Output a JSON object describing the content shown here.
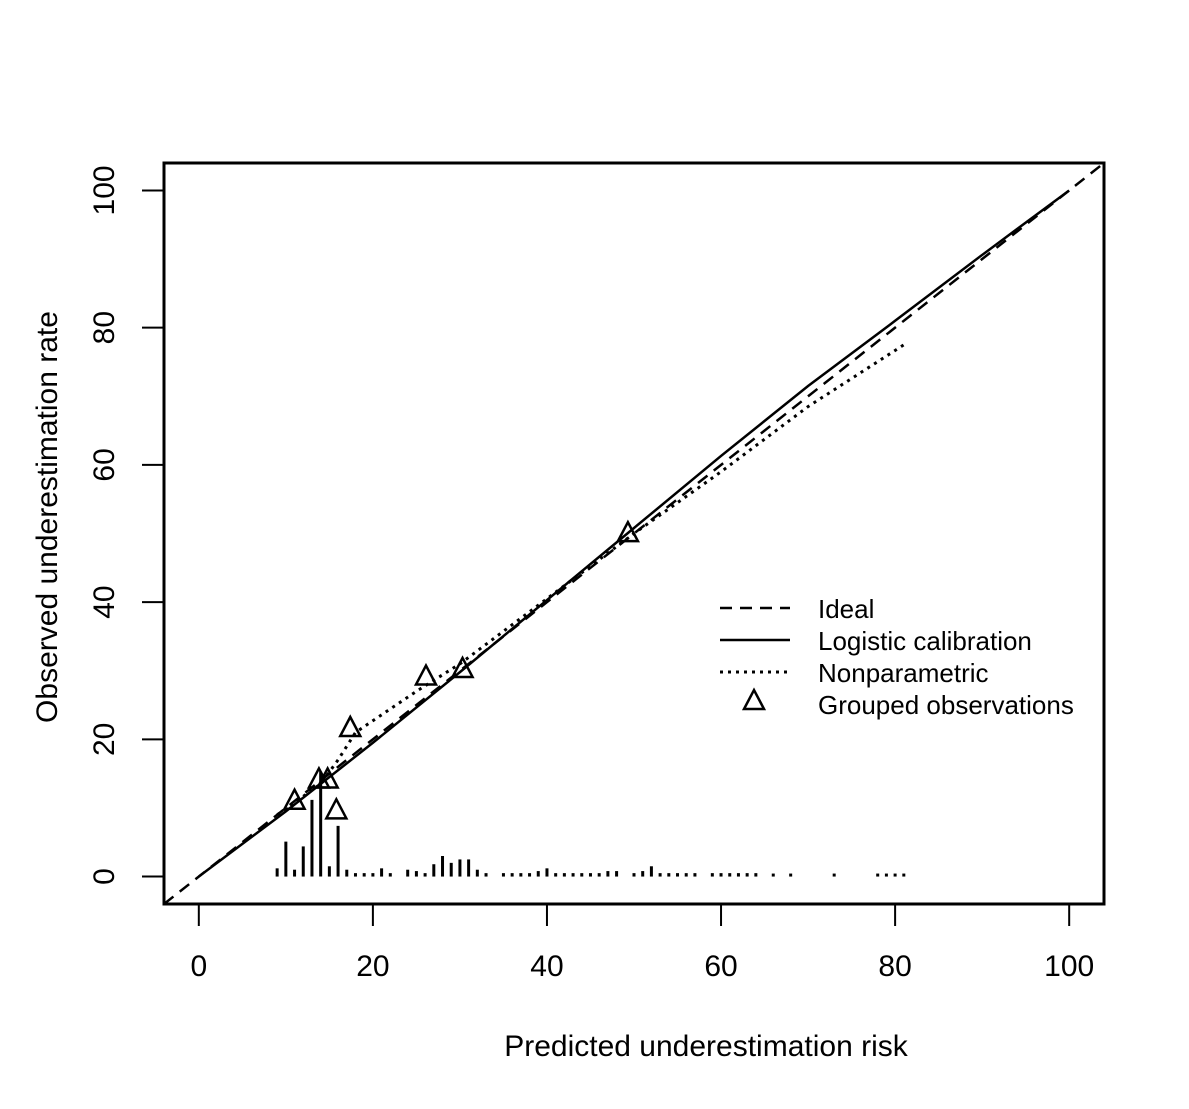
{
  "chart_data": {
    "type": "line",
    "title": "",
    "xlabel": "Predicted underestimation risk",
    "ylabel": "Observed underestimation rate",
    "xlim": [
      -4,
      104
    ],
    "ylim": [
      -4,
      104
    ],
    "xticks": [
      0,
      20,
      40,
      60,
      80,
      100
    ],
    "yticks": [
      0,
      20,
      40,
      60,
      80,
      100
    ],
    "grid": false,
    "legend_position": "center-right",
    "series": [
      {
        "name": "Ideal",
        "style": "dashed",
        "x": [
          -4,
          104
        ],
        "y": [
          -4,
          104
        ]
      },
      {
        "name": "Logistic calibration",
        "style": "solid",
        "x": [
          0,
          10,
          20,
          30,
          40,
          50,
          60,
          70,
          80,
          90,
          100
        ],
        "y": [
          0,
          9.5,
          19.5,
          29.8,
          40.3,
          50.8,
          61.3,
          71.5,
          81,
          90.6,
          100
        ]
      },
      {
        "name": "Nonparametric",
        "style": "dotted",
        "x": [
          9,
          14,
          16,
          18,
          25,
          30,
          40,
          50,
          60,
          70,
          81
        ],
        "y": [
          9,
          13.5,
          17,
          21,
          27,
          31,
          40.5,
          50,
          59,
          68.5,
          77.5
        ]
      },
      {
        "name": "Grouped observations",
        "style": "triangle",
        "x": [
          11,
          13.8,
          14.8,
          15.8,
          17.4,
          26.1,
          30.3,
          49.3
        ],
        "y": [
          11.2,
          14.3,
          14.3,
          9.8,
          21.8,
          29.3,
          30.4,
          50.2
        ]
      }
    ],
    "rug": {
      "x": [
        9,
        10,
        11,
        12,
        13,
        14,
        15,
        16,
        17,
        18,
        19,
        20,
        21,
        22,
        24,
        25,
        26,
        27,
        28,
        29,
        30,
        31,
        32,
        33,
        35,
        36,
        37,
        38,
        39,
        40,
        41,
        42,
        43,
        44,
        45,
        46,
        47,
        48,
        50,
        51,
        52,
        53,
        54,
        55,
        56,
        57,
        59,
        60,
        61,
        62,
        63,
        64,
        66,
        68,
        73,
        78,
        79,
        80,
        81
      ],
      "h": [
        1.2,
        5.1,
        1,
        4.4,
        11.2,
        15.3,
        1.5,
        7.4,
        1,
        0.5,
        0.5,
        0.5,
        1.2,
        0.5,
        1,
        0.8,
        0.5,
        1.8,
        3,
        2,
        2.5,
        2.5,
        1,
        0.5,
        0.5,
        0.5,
        0.5,
        0.5,
        0.8,
        1.2,
        0.5,
        0.5,
        0.5,
        0.5,
        0.5,
        0.5,
        0.8,
        0.8,
        0.5,
        0.8,
        1.5,
        0.5,
        0.5,
        0.5,
        0.5,
        0.5,
        0.5,
        0.5,
        0.5,
        0.5,
        0.5,
        0.5,
        0.4,
        0.4,
        0.4,
        0.4,
        0.4,
        0.4,
        0.4
      ]
    }
  }
}
